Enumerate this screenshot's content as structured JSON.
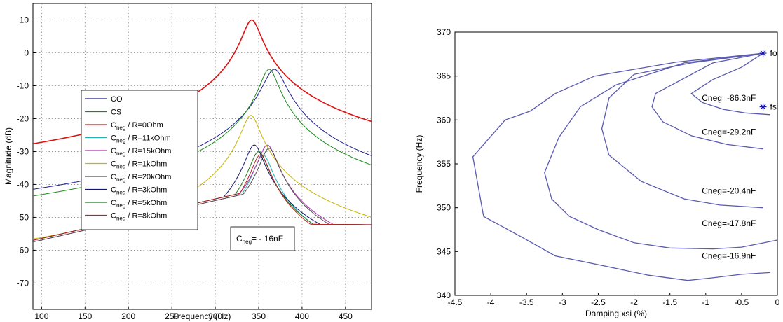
{
  "chart_data": [
    {
      "type": "line",
      "xlabel": "Frequency (Hz)",
      "ylabel": "Magnitude (dB)",
      "xlim": [
        90,
        480
      ],
      "ylim": [
        -78,
        15
      ],
      "xticks": [
        100,
        150,
        200,
        250,
        300,
        350,
        400,
        450
      ],
      "yticks": [
        10,
        0,
        -10,
        -20,
        -30,
        -40,
        -50,
        -60,
        -70
      ],
      "grid": true,
      "legend_position": "center-left",
      "annotation": {
        "main": "C",
        "sub": "neg",
        "rest": "= - 16nF"
      },
      "series": [
        {
          "name": "CO",
          "legend_text": {
            "main": "CO",
            "sub": "",
            "rest": ""
          },
          "color": "#1f1f8f",
          "peak_x": 368,
          "peak_y": -5,
          "base_y": -57.5
        },
        {
          "name": "CS",
          "legend_text": {
            "main": "CS",
            "sub": "",
            "rest": ""
          },
          "color": "#1b8a1b",
          "peak_x": 362,
          "peak_y": -5,
          "base_y": -57
        },
        {
          "name": "Cneg / R=0Ohm",
          "legend_text": {
            "main": "C",
            "sub": "neg",
            "rest": " / R=0Ohm"
          },
          "color": "#e01010",
          "peak_x": 342,
          "peak_y": 10,
          "base_y": -57
        },
        {
          "name": "Cneg / R=11kOhm",
          "legend_text": {
            "main": "C",
            "sub": "neg",
            "rest": " / R=11kOhm"
          },
          "color": "#20b2b2",
          "peak_x": 355,
          "peak_y": -31,
          "base_y": -57
        },
        {
          "name": "Cneg / R=15kOhm",
          "legend_text": {
            "main": "C",
            "sub": "neg",
            "rest": " / R=15kOhm"
          },
          "color": "#b030b0",
          "peak_x": 360,
          "peak_y": -28,
          "base_y": -57.5
        },
        {
          "name": "Cneg / R=1kOhm",
          "legend_text": {
            "main": "C",
            "sub": "neg",
            "rest": " / R=1kOhm"
          },
          "color": "#c8b400",
          "peak_x": 341,
          "peak_y": -19,
          "base_y": -57
        },
        {
          "name": "Cneg / R=20kOhm",
          "legend_text": {
            "main": "C",
            "sub": "neg",
            "rest": " / R=20kOhm"
          },
          "color": "#505050",
          "peak_x": 362,
          "peak_y": -29,
          "base_y": -57.5
        },
        {
          "name": "Cneg / R=3kOhm",
          "legend_text": {
            "main": "C",
            "sub": "neg",
            "rest": " / R=3kOhm"
          },
          "color": "#151570",
          "peak_x": 345,
          "peak_y": -28,
          "base_y": -57
        },
        {
          "name": "Cneg / R=5kOhm",
          "legend_text": {
            "main": "C",
            "sub": "neg",
            "rest": " / R=5kOhm"
          },
          "color": "#1f7a1f",
          "peak_x": 350,
          "peak_y": -30,
          "base_y": -57
        },
        {
          "name": "Cneg / R=8kOhm",
          "legend_text": {
            "main": "C",
            "sub": "neg",
            "rest": " / R=8kOhm"
          },
          "color": "#c02020",
          "peak_x": 352,
          "peak_y": -31,
          "base_y": -57
        }
      ]
    },
    {
      "type": "line",
      "xlabel": "Damping xsi (%)",
      "ylabel": "Frequency (Hz)",
      "xlim": [
        -4.5,
        0
      ],
      "ylim": [
        340,
        370
      ],
      "xticks": [
        "-4.5",
        "-4",
        "-3.5",
        "-3",
        "-2.5",
        "-2",
        "-1.5",
        "-1",
        "-0.5",
        "0"
      ],
      "yticks": [
        370,
        365,
        360,
        355,
        350,
        345,
        340
      ],
      "grid": false,
      "line_color": "#5a5ab0",
      "series": [
        {
          "name": "Cneg=-86.3nF",
          "points": [
            [
              -0.2,
              367.6
            ],
            [
              -0.5,
              366
            ],
            [
              -0.9,
              364.6
            ],
            [
              -1.2,
              363
            ],
            [
              -1.05,
              362
            ],
            [
              -0.75,
              361.2
            ],
            [
              -0.45,
              360.8
            ],
            [
              -0.1,
              360.6
            ]
          ]
        },
        {
          "name": "Cneg=-29.2nF",
          "points": [
            [
              -0.2,
              367.6
            ],
            [
              -0.9,
              366.5
            ],
            [
              -1.7,
              363
            ],
            [
              -1.75,
              361.5
            ],
            [
              -1.6,
              359.8
            ],
            [
              -1.2,
              358.2
            ],
            [
              -0.7,
              357.2
            ],
            [
              -0.2,
              356.7
            ]
          ]
        },
        {
          "name": "Cneg=-20.4nF",
          "points": [
            [
              -0.2,
              367.6
            ],
            [
              -1.2,
              366.5
            ],
            [
              -2.0,
              365.2
            ],
            [
              -2.35,
              362.5
            ],
            [
              -2.45,
              359
            ],
            [
              -2.35,
              356
            ],
            [
              -1.9,
              353
            ],
            [
              -1.3,
              351
            ],
            [
              -0.8,
              350.3
            ],
            [
              -0.2,
              350
            ]
          ]
        },
        {
          "name": "Cneg=-17.8nF",
          "points": [
            [
              -0.2,
              367.6
            ],
            [
              -1.3,
              366.5
            ],
            [
              -2.25,
              364
            ],
            [
              -2.75,
              361.5
            ],
            [
              -3.05,
              358
            ],
            [
              -3.25,
              354
            ],
            [
              -3.15,
              351
            ],
            [
              -2.9,
              349
            ],
            [
              -2.5,
              347.5
            ],
            [
              -2.0,
              346
            ],
            [
              -1.5,
              345.4
            ],
            [
              -0.9,
              345.3
            ],
            [
              -0.5,
              345.5
            ],
            [
              0,
              346.3
            ]
          ]
        },
        {
          "name": "Cneg=-16.9nF",
          "points": [
            [
              -0.2,
              367.6
            ],
            [
              -1.4,
              366.6
            ],
            [
              -2.55,
              365
            ],
            [
              -3.1,
              363
            ],
            [
              -3.45,
              361
            ],
            [
              -3.8,
              360
            ],
            [
              -4.25,
              355.8
            ],
            [
              -4.1,
              349
            ],
            [
              -3.6,
              346.8
            ],
            [
              -3.1,
              344.5
            ],
            [
              -2.5,
              343.5
            ],
            [
              -1.8,
              342.3
            ],
            [
              -1.25,
              341.7
            ],
            [
              -0.9,
              342
            ],
            [
              -0.5,
              342.4
            ],
            [
              -0.1,
              342.6
            ]
          ]
        }
      ],
      "markers": [
        {
          "label": "fo",
          "x": -0.2,
          "y": 367.6
        },
        {
          "label": "fs",
          "x": -0.2,
          "y": 361.5
        }
      ]
    }
  ]
}
